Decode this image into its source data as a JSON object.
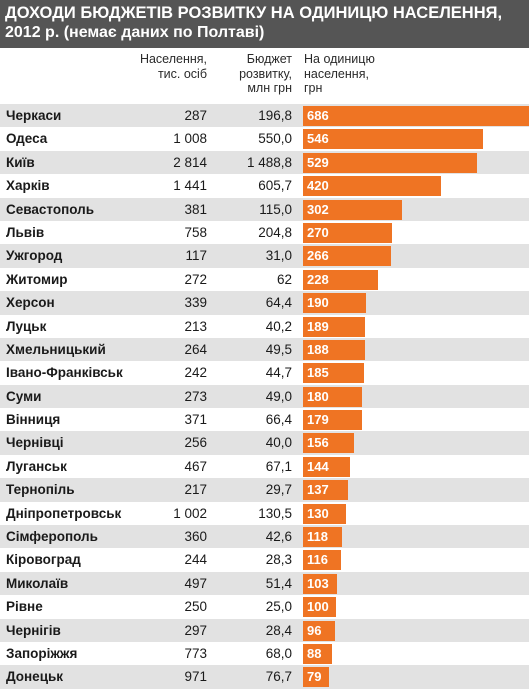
{
  "title": {
    "line1": "ДОХОДИ БЮДЖЕТІВ РОЗВИТКУ НА ОДИНИЦЮ НАСЕЛЕННЯ,",
    "line2": "2012 р. (немає даних по Полтаві)"
  },
  "headers": {
    "population": [
      "Населення,",
      "тис. осіб"
    ],
    "budget": [
      "Бюджет",
      "розвитку,",
      "млн грн"
    ],
    "per_capita": [
      "На одиницю",
      "населення,",
      "грн"
    ]
  },
  "colors": {
    "bar": "#ef7423",
    "stripe": "#e2e2e2",
    "title_bg": "#555555"
  },
  "chart_data": {
    "type": "bar",
    "orientation": "horizontal",
    "max_value": 686,
    "rows": [
      {
        "city": "Черкаси",
        "population": "287",
        "budget": "196,8",
        "per_capita": 686
      },
      {
        "city": "Одеса",
        "population": "1 008",
        "budget": "550,0",
        "per_capita": 546
      },
      {
        "city": "Київ",
        "population": "2 814",
        "budget": "1 488,8",
        "per_capita": 529
      },
      {
        "city": "Харків",
        "population": "1 441",
        "budget": "605,7",
        "per_capita": 420
      },
      {
        "city": "Севастополь",
        "population": "381",
        "budget": "115,0",
        "per_capita": 302
      },
      {
        "city": "Львів",
        "population": "758",
        "budget": "204,8",
        "per_capita": 270
      },
      {
        "city": "Ужгород",
        "population": "117",
        "budget": "31,0",
        "per_capita": 266
      },
      {
        "city": "Житомир",
        "population": "272",
        "budget": "62",
        "per_capita": 228
      },
      {
        "city": "Херсон",
        "population": "339",
        "budget": "64,4",
        "per_capita": 190
      },
      {
        "city": "Луцьк",
        "population": "213",
        "budget": "40,2",
        "per_capita": 189
      },
      {
        "city": "Хмельницький",
        "population": "264",
        "budget": "49,5",
        "per_capita": 188
      },
      {
        "city": "Івано-Франківськ",
        "population": "242",
        "budget": "44,7",
        "per_capita": 185
      },
      {
        "city": "Суми",
        "population": "273",
        "budget": "49,0",
        "per_capita": 180
      },
      {
        "city": "Вінниця",
        "population": "371",
        "budget": "66,4",
        "per_capita": 179
      },
      {
        "city": "Чернівці",
        "population": "256",
        "budget": "40,0",
        "per_capita": 156
      },
      {
        "city": "Луганськ",
        "population": "467",
        "budget": "67,1",
        "per_capita": 144
      },
      {
        "city": "Тернопіль",
        "population": "217",
        "budget": "29,7",
        "per_capita": 137
      },
      {
        "city": "Дніпропетровськ",
        "population": "1 002",
        "budget": "130,5",
        "per_capita": 130
      },
      {
        "city": "Сімферополь",
        "population": "360",
        "budget": "42,6",
        "per_capita": 118
      },
      {
        "city": "Кіровоград",
        "population": "244",
        "budget": "28,3",
        "per_capita": 116
      },
      {
        "city": "Миколаїв",
        "population": "497",
        "budget": "51,4",
        "per_capita": 103
      },
      {
        "city": "Рівне",
        "population": "250",
        "budget": "25,0",
        "per_capita": 100
      },
      {
        "city": "Чернігів",
        "population": "297",
        "budget": "28,4",
        "per_capita": 96
      },
      {
        "city": "Запоріжжя",
        "population": "773",
        "budget": "68,0",
        "per_capita": 88
      },
      {
        "city": "Донецьк",
        "population": "971",
        "budget": "76,7",
        "per_capita": 79
      }
    ]
  }
}
